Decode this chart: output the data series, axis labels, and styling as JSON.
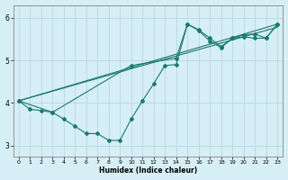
{
  "xlabel": "Humidex (Indice chaleur)",
  "bg_color": "#d6eef5",
  "grid_color": "#b8d8e4",
  "line_color": "#1a7a6e",
  "xlim": [
    -0.5,
    23.5
  ],
  "ylim": [
    2.75,
    6.3
  ],
  "xticks": [
    0,
    1,
    2,
    3,
    4,
    5,
    6,
    7,
    8,
    9,
    10,
    11,
    12,
    13,
    14,
    15,
    16,
    17,
    18,
    19,
    20,
    21,
    22,
    23
  ],
  "yticks": [
    3,
    4,
    5,
    6
  ],
  "line1_x": [
    0,
    1,
    2,
    3,
    4,
    5,
    6,
    7,
    8,
    9,
    10,
    11,
    12,
    13,
    14,
    15,
    16,
    17,
    18,
    19,
    20,
    21,
    22,
    23
  ],
  "line1_y": [
    4.05,
    3.85,
    3.82,
    3.78,
    3.62,
    3.45,
    3.28,
    3.28,
    3.12,
    3.12,
    3.62,
    4.05,
    4.45,
    4.88,
    4.9,
    5.85,
    5.7,
    5.45,
    5.3,
    5.52,
    5.55,
    5.52,
    5.52,
    5.85
  ],
  "line2_x": [
    0,
    3,
    10,
    14,
    15,
    16,
    17,
    18,
    19,
    20,
    21,
    22,
    23
  ],
  "line2_y": [
    4.05,
    3.78,
    4.88,
    5.05,
    5.85,
    5.72,
    5.52,
    5.32,
    5.52,
    5.6,
    5.62,
    5.52,
    5.85
  ],
  "line3_x": [
    0,
    23
  ],
  "line3_y": [
    4.05,
    5.85
  ],
  "line4_x": [
    0,
    23
  ],
  "line4_y": [
    4.05,
    5.78
  ]
}
